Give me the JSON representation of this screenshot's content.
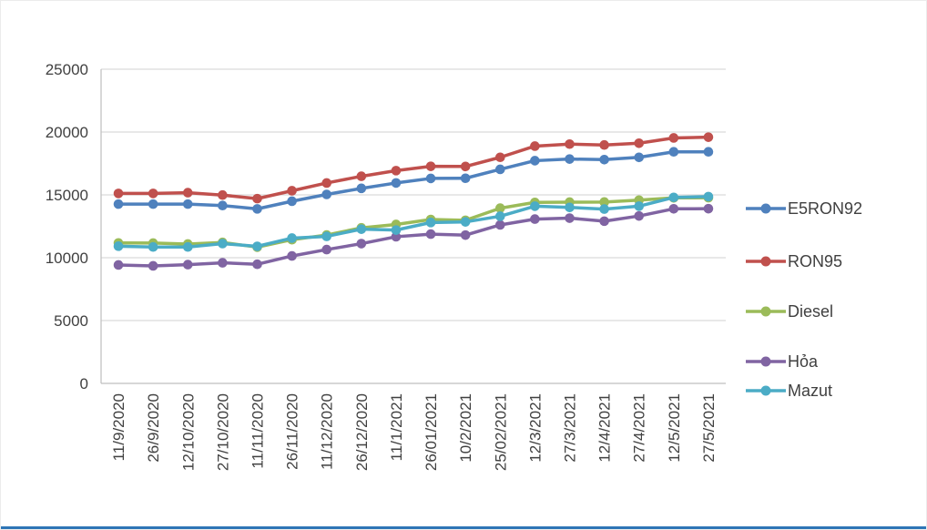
{
  "chart_data": {
    "type": "line",
    "title": "",
    "xlabel": "",
    "ylabel": "",
    "grid": true,
    "legend_position": "right",
    "marker": "circle",
    "categories": [
      "11/9/2020",
      "26/9/2020",
      "12/10/2020",
      "27/10/2020",
      "11/11/2020",
      "26/11/2020",
      "11/12/2020",
      "26/12/2020",
      "11/1/2021",
      "26/01/2021",
      "10/2/2021",
      "25/02/2021",
      "12/3/2021",
      "27/3/2021",
      "12/4/2021",
      "27/4/2021",
      "12/5/2021",
      "27/5/2021"
    ],
    "y_axis": {
      "min": 0,
      "max": 25000,
      "step": 5000,
      "tick_labels": [
        "0",
        "5000",
        "10000",
        "15000",
        "20000",
        "25000"
      ]
    },
    "series": [
      {
        "name": "E5RON92",
        "color": "#4F81BD",
        "values": [
          14266,
          14266,
          14266,
          14151,
          13885,
          14494,
          15037,
          15518,
          15948,
          16309,
          16323,
          17031,
          17722,
          17851,
          17806,
          17988,
          18426,
          18426
        ]
      },
      {
        "name": "RON95",
        "color": "#C0504D",
        "values": [
          15114,
          15114,
          15174,
          14984,
          14701,
          15327,
          15946,
          16479,
          16930,
          17270,
          17260,
          17989,
          18881,
          19040,
          18970,
          19110,
          19530,
          19590
        ]
      },
      {
        "name": "Diesel",
        "color": "#9BBB59",
        "values": [
          11176,
          11164,
          11090,
          11218,
          10838,
          11434,
          11807,
          12376,
          12647,
          13042,
          12980,
          13942,
          14401,
          14422,
          14432,
          14580,
          14761,
          14774
        ]
      },
      {
        "name": "Hỏa",
        "color": "#8064A2",
        "values": [
          9423,
          9350,
          9449,
          9594,
          9476,
          10138,
          10647,
          11119,
          11671,
          11879,
          11801,
          12610,
          13072,
          13151,
          12908,
          13320,
          13891,
          13900
        ]
      },
      {
        "name": "Mazut",
        "color": "#4BACC6",
        "values": [
          10919,
          10853,
          10854,
          11123,
          10906,
          11560,
          11697,
          12272,
          12200,
          12800,
          12850,
          13300,
          14100,
          14000,
          13870,
          14100,
          14800,
          14860
        ]
      }
    ]
  },
  "colors": {
    "gridline": "#D9D9D9",
    "axis_line": "#BFBFBF",
    "axis_text": "#404040",
    "background": "#FFFFFF",
    "bottom_edge": "#2E75B6"
  }
}
